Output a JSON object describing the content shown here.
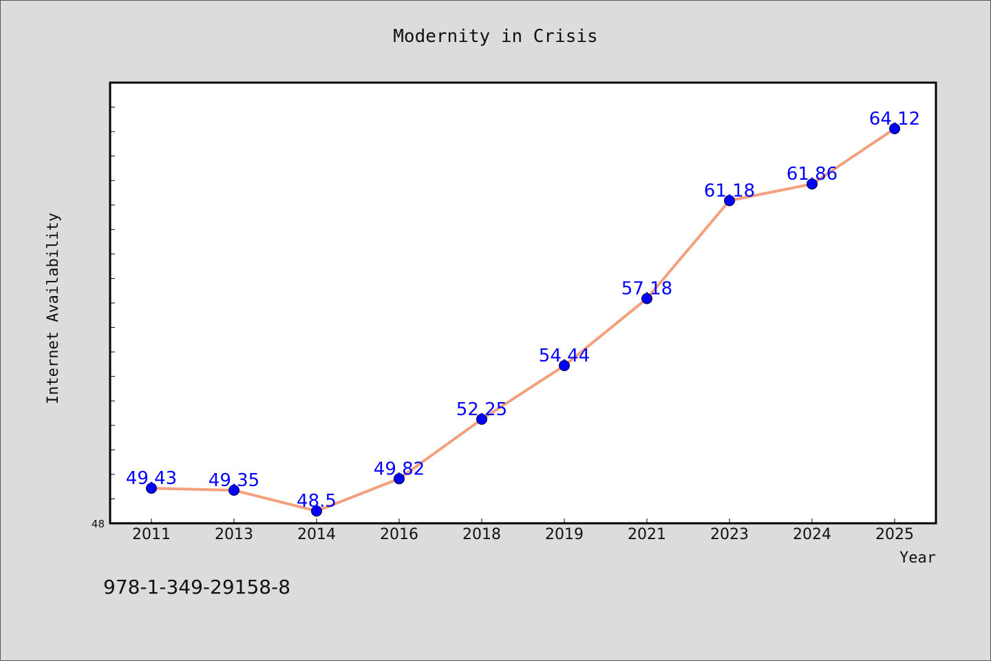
{
  "page": {
    "background": "#dcdcdc",
    "footer_text": "978-1-349-29158-8"
  },
  "chart_data": {
    "type": "line",
    "title": "Modernity in Crisis",
    "xlabel": "Year",
    "ylabel": "Internet Availability",
    "categories": [
      "2011",
      "2013",
      "2014",
      "2016",
      "2018",
      "2019",
      "2021",
      "2023",
      "2024",
      "2025"
    ],
    "series": [
      {
        "values": [
          49.43,
          49.35,
          48.5,
          49.82,
          52.25,
          54.44,
          57.18,
          61.18,
          61.86,
          64.12
        ],
        "line_color": "#f4a07c",
        "marker_color": "#0000ff",
        "label_color": "#0000ff"
      }
    ],
    "ylim": [
      48,
      66
    ],
    "y_tick_labels": [
      "48"
    ],
    "grid": false,
    "legend": "none"
  }
}
